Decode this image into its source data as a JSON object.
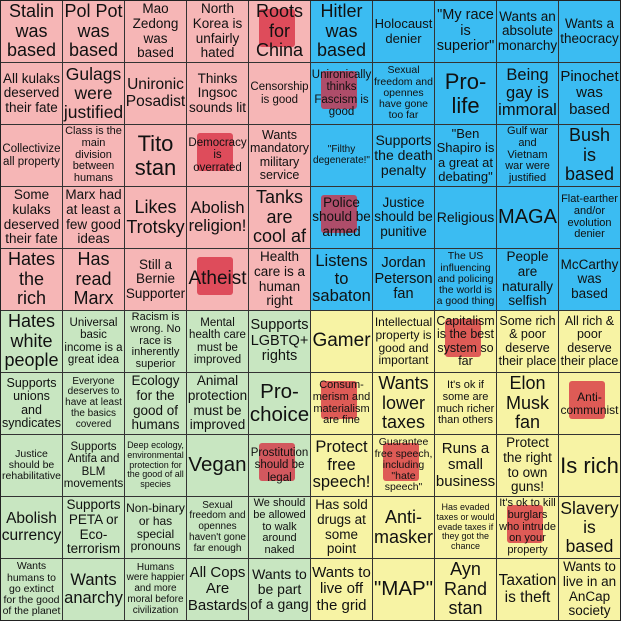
{
  "grid": {
    "rows": [
      [
        "Stalin was based",
        "Pol Pot was based",
        "Mao Zedong was based",
        "North Korea is unfairly hated",
        "Roots for China",
        "Hitler was based",
        "Holocaust denier",
        "\"My race is superior\"",
        "Wants an absolute monarchy",
        "Wants a theocracy"
      ],
      [
        "All kulaks deserved their fate",
        "Gulags were justified",
        "Unironic Posadist",
        "Thinks Ingsoc sounds lit",
        "Censorship is good",
        "Unironically thinks Fascism is good",
        "Sexual freedom and opennes have gone too far",
        "Pro-life",
        "Being gay is immoral",
        "Pinochet was based"
      ],
      [
        "Collectivize all property",
        "Class is the main division between humans",
        "Tito stan",
        "Democracy is overrated",
        "Wants mandatory military service",
        "\"Filthy degenerate!\"",
        "Supports the death penalty",
        "\"Ben Shapiro is a great at debating\"",
        "Gulf war and Vietnam war were justified",
        "Bush is based"
      ],
      [
        "Some kulaks deserved their fate",
        "Marx had at least a few good ideas",
        "Likes Trotsky",
        "Abolish religion!",
        "Tanks are cool af",
        "Police should be armed",
        "Justice should be punitive",
        "Religious",
        "MAGA",
        "Flat-earther and/or evolution denier"
      ],
      [
        "Hates the rich",
        "Has read Marx",
        "Still a Bernie Supporter",
        "Atheist",
        "Health care is a human right",
        "Listens to sabaton",
        "Jordan Peterson fan",
        "The US influencing and policing the world is a good thing",
        "People are naturally selfish",
        "McCarthy was based"
      ],
      [
        "Hates white people",
        "Universal basic income is a great idea",
        "Racism is wrong. No race is inherently superior",
        "Mental health care must be improved",
        "Supports LGBTQ+ rights",
        "Gamer",
        "Intellectual property is good and important",
        "Capitalism is the best system so far",
        "Some rich & poor deserve their place",
        "All rich & poor deserve their place"
      ],
      [
        "Supports unions and syndicates",
        "Everyone deserves to have at least the basics covered",
        "Ecology for the good of humans",
        "Animal protection must be improved",
        "Pro-choice",
        "Consum-merism and materialism are fine",
        "Wants lower taxes",
        "It's ok if some are much richer than others",
        "Elon Musk fan",
        "Anti-communist"
      ],
      [
        "Justice should be rehabilitative",
        "Supports Antifa and BLM movements",
        "Deep ecology, environmental protection for the good of all species",
        "Vegan",
        "Prostitution should be legal",
        "Protect free speech!",
        "Guarantee free speech, including \"hate speech\"",
        "Runs a small business",
        "Protect the right to own guns!",
        "Is rich"
      ],
      [
        "Abolish currency",
        "Supports PETA or Eco-terrorism",
        "Non-binary or has special pronouns",
        "Sexual freedom and opennes haven't gone far enough",
        "We should be allowed to walk around naked",
        "Has sold drugs at some point",
        "Anti-masker",
        "Has evaded taxes or would evade taxes if they got the chance",
        "It's ok to kill burglars who intrude on your property",
        "Slavery is based"
      ],
      [
        "Wants humans to go extinct for the good of the planet",
        "Wants anarchy",
        "Humans were happier and more moral before civilization",
        "All Cops Are Bastards",
        "Wants to be part of a gang",
        "Wants to live off the grid",
        "\"MAP\"",
        "Ayn Rand stan",
        "Taxation is theft",
        "Wants to live in an AnCap society"
      ]
    ]
  }
}
